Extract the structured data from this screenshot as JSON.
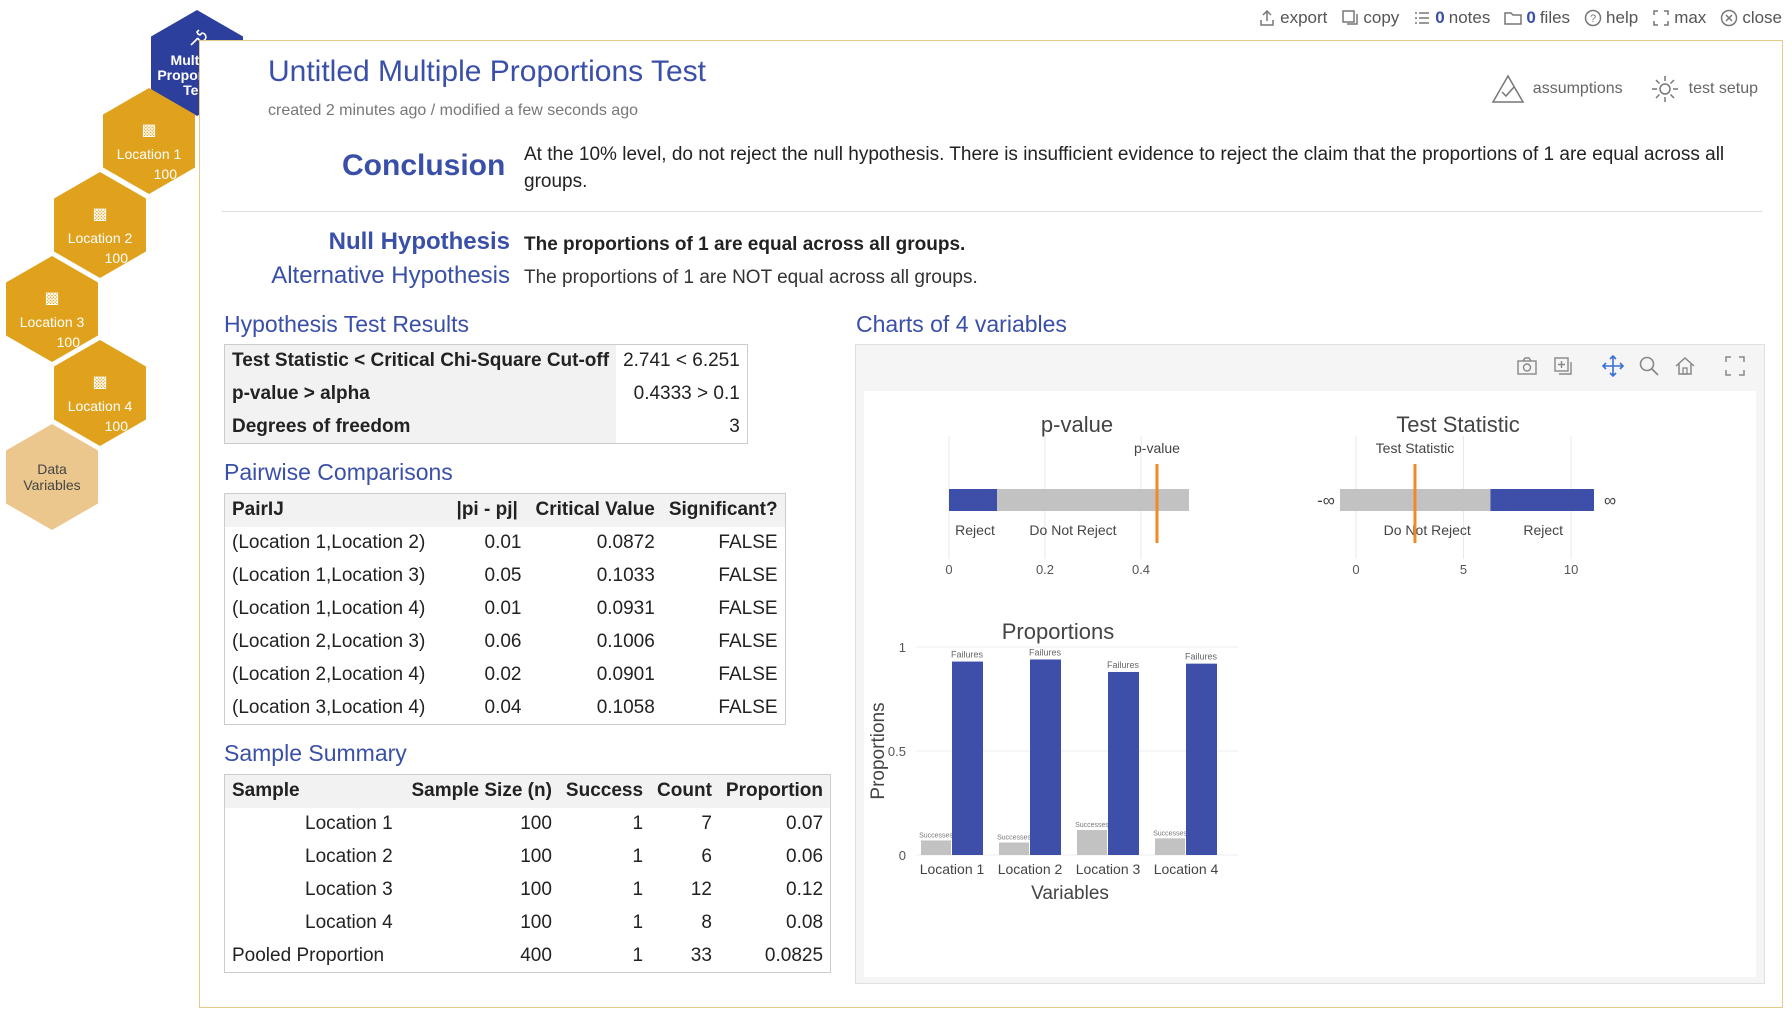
{
  "toolbar": {
    "export": "export",
    "copy": "copy",
    "notes_count": "0",
    "notes": "notes",
    "files_count": "0",
    "files": "files",
    "help": "help",
    "max": "max",
    "close": "close"
  },
  "hex_nav": {
    "main": "Multiple Proportions Test",
    "variables": [
      {
        "label": "Location 1",
        "count": "100"
      },
      {
        "label": "Location 2",
        "count": "100"
      },
      {
        "label": "Location 3",
        "count": "100"
      },
      {
        "label": "Location 4",
        "count": "100"
      }
    ],
    "data": "Data Variables"
  },
  "header": {
    "title": "Untitled Multiple Proportions Test",
    "subtitle": "created 2 minutes ago / modified a few seconds ago",
    "assumptions": "assumptions",
    "test_setup": "test setup"
  },
  "conclusion": {
    "label": "Conclusion",
    "text": "At the 10% level, do not reject the null hypothesis. There is insufficient evidence to reject the claim that the proportions of 1 are equal across all groups."
  },
  "hypotheses": {
    "null_label": "Null Hypothesis",
    "null_text": "The proportions of 1 are equal across all groups.",
    "alt_label": "Alternative Hypothesis",
    "alt_text": "The proportions of 1 are NOT equal across all groups."
  },
  "results": {
    "title": "Hypothesis Test Results",
    "rows": [
      {
        "label": "Test Statistic < Critical Chi-Square Cut-off",
        "value": "2.741 < 6.251"
      },
      {
        "label": "p-value > alpha",
        "value": "0.4333 > 0.1"
      },
      {
        "label": "Degrees of freedom",
        "value": "3"
      }
    ]
  },
  "pairwise": {
    "title": "Pairwise Comparisons",
    "headers": [
      "PairIJ",
      "|pi - pj|",
      "Critical Value",
      "Significant?"
    ],
    "rows": [
      [
        "(Location 1,Location 2)",
        "0.01",
        "0.0872",
        "FALSE"
      ],
      [
        "(Location 1,Location 3)",
        "0.05",
        "0.1033",
        "FALSE"
      ],
      [
        "(Location 1,Location 4)",
        "0.01",
        "0.0931",
        "FALSE"
      ],
      [
        "(Location 2,Location 3)",
        "0.06",
        "0.1006",
        "FALSE"
      ],
      [
        "(Location 2,Location 4)",
        "0.02",
        "0.0901",
        "FALSE"
      ],
      [
        "(Location 3,Location 4)",
        "0.04",
        "0.1058",
        "FALSE"
      ]
    ]
  },
  "summary": {
    "title": "Sample Summary",
    "headers": [
      "Sample",
      "Sample Size (n)",
      "Success",
      "Count",
      "Proportion"
    ],
    "rows": [
      [
        "Location 1",
        "100",
        "1",
        "7",
        "0.07"
      ],
      [
        "Location 2",
        "100",
        "1",
        "6",
        "0.06"
      ],
      [
        "Location 3",
        "100",
        "1",
        "12",
        "0.12"
      ],
      [
        "Location 4",
        "100",
        "1",
        "8",
        "0.08"
      ],
      [
        "Pooled Proportion",
        "400",
        "1",
        "33",
        "0.0825"
      ]
    ]
  },
  "charts_title": "Charts of 4 variables",
  "colors": {
    "accent": "#3a4fa8",
    "bar_blue": "#3d4fa8",
    "bar_gray": "#c2c2c2",
    "marker_orange": "#f08a24",
    "hex_main": "#2d3f9c",
    "hex_var": "#e0a21c",
    "hex_data": "#ebc78e"
  },
  "chart_data": [
    {
      "type": "bar",
      "title": "p-value",
      "region_labels": [
        "Reject",
        "Do Not Reject"
      ],
      "alpha": 0.1,
      "xlim": [
        0,
        0.5
      ],
      "x_ticks": [
        "0",
        "0.2",
        "0.4"
      ],
      "marker_label": "p-value",
      "marker_value": 0.4333
    },
    {
      "type": "bar",
      "title": "Test Statistic",
      "region_labels": [
        "Do Not Reject",
        "Reject"
      ],
      "critical_value": 6.251,
      "xlim": [
        0,
        10.6
      ],
      "x_ticks": [
        "0",
        "5",
        "10"
      ],
      "end_labels": [
        "-∞",
        "∞"
      ],
      "marker_label": "Test Statistic",
      "marker_value": 2.741
    },
    {
      "type": "bar",
      "title": "Proportions",
      "xlabel": "Variables",
      "ylabel": "Proportions",
      "ylim": [
        0,
        1
      ],
      "y_ticks": [
        "0",
        "0.5",
        "1"
      ],
      "categories": [
        "Location 1",
        "Location 2",
        "Location 3",
        "Location 4"
      ],
      "series": [
        {
          "name": "Successes",
          "values": [
            0.07,
            0.06,
            0.12,
            0.08
          ]
        },
        {
          "name": "Failures",
          "values": [
            0.93,
            0.94,
            0.88,
            0.92
          ]
        }
      ]
    }
  ]
}
